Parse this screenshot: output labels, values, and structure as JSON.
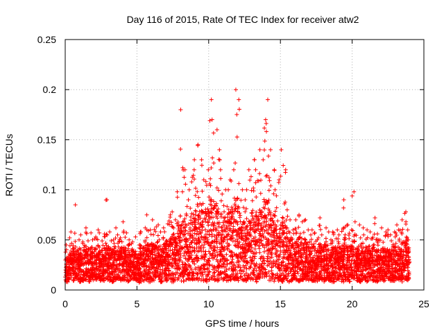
{
  "chart_data": {
    "type": "scatter",
    "title": "Day 116 of 2015, Rate Of TEC Index for receiver atw2",
    "xlabel": "GPS time / hours",
    "ylabel": "ROTI / TECUs",
    "xlim": [
      0,
      25
    ],
    "ylim": [
      0,
      0.25
    ],
    "xticks": [
      "0",
      "5",
      "10",
      "15",
      "20",
      "25"
    ],
    "yticks": [
      "0",
      "0.05",
      "0.1",
      "0.15",
      "0.2",
      "0.25"
    ],
    "grid": true,
    "legend": "none",
    "marker": "plus",
    "color": "#ff0000",
    "series": [
      {
        "x": [
          0.0,
          0.2,
          0.4,
          0.6,
          0.8,
          1.0,
          1.2,
          1.4,
          1.6,
          1.8,
          2.0,
          2.2,
          2.4,
          2.6,
          2.8,
          3.0,
          3.2,
          3.4,
          3.6,
          3.8,
          4.0,
          4.2,
          4.4,
          4.6,
          4.8,
          5.0,
          5.2,
          5.4,
          5.6,
          5.8,
          6.0,
          6.2,
          6.4,
          6.6,
          6.8,
          7.0,
          7.2,
          7.4,
          7.6,
          7.8,
          8.0,
          8.2,
          8.4,
          8.6,
          8.8,
          9.0,
          9.2,
          9.4,
          9.6,
          9.8,
          10.0,
          10.2,
          10.4,
          10.6,
          10.8,
          11.0,
          11.2,
          11.4,
          11.6,
          11.8,
          12.0,
          12.2,
          12.4,
          12.6,
          12.8,
          13.0,
          13.2,
          13.4,
          13.6,
          13.8,
          14.0,
          14.2,
          14.4,
          14.6,
          14.8,
          15.0,
          15.2,
          15.4,
          15.6,
          15.8,
          16.0,
          16.2,
          16.4,
          16.6,
          16.8,
          17.0,
          17.2,
          17.4,
          17.6,
          17.8,
          18.0,
          18.2,
          18.4,
          18.6,
          18.8,
          19.0,
          19.2,
          19.4,
          19.6,
          19.8,
          20.0,
          20.2,
          20.4,
          20.6,
          20.8,
          21.0,
          21.2,
          21.4,
          21.6,
          21.8,
          22.0,
          22.2,
          22.4,
          22.6,
          22.8,
          23.0,
          23.2,
          23.4,
          23.6,
          23.8
        ],
        "y_min": [
          0.008,
          0.01,
          0.009,
          0.011,
          0.01,
          0.008,
          0.009,
          0.01,
          0.008,
          0.009,
          0.01,
          0.011,
          0.009,
          0.008,
          0.01,
          0.009,
          0.008,
          0.01,
          0.011,
          0.009,
          0.01,
          0.008,
          0.009,
          0.01,
          0.009,
          0.007,
          0.008,
          0.009,
          0.01,
          0.008,
          0.009,
          0.01,
          0.009,
          0.008,
          0.01,
          0.009,
          0.01,
          0.008,
          0.009,
          0.01,
          0.009,
          0.008,
          0.01,
          0.009,
          0.008,
          0.01,
          0.009,
          0.008,
          0.006,
          0.008,
          0.009,
          0.01,
          0.008,
          0.009,
          0.008,
          0.01,
          0.009,
          0.008,
          0.01,
          0.009,
          0.008,
          0.01,
          0.009,
          0.008,
          0.01,
          0.009,
          0.008,
          0.01,
          0.009,
          0.008,
          0.01,
          0.009,
          0.008,
          0.01,
          0.009,
          0.008,
          0.01,
          0.009,
          0.008,
          0.01,
          0.009,
          0.008,
          0.01,
          0.009,
          0.008,
          0.01,
          0.009,
          0.008,
          0.01,
          0.009,
          0.008,
          0.01,
          0.009,
          0.008,
          0.01,
          0.009,
          0.008,
          0.01,
          0.009,
          0.008,
          0.01,
          0.009,
          0.008,
          0.01,
          0.009,
          0.008,
          0.01,
          0.009,
          0.008,
          0.01,
          0.009,
          0.008,
          0.01,
          0.009,
          0.008,
          0.01,
          0.009,
          0.008,
          0.01,
          0.009
        ],
        "y_max": [
          0.045,
          0.052,
          0.058,
          0.085,
          0.05,
          0.055,
          0.048,
          0.062,
          0.057,
          0.05,
          0.053,
          0.06,
          0.049,
          0.056,
          0.09,
          0.058,
          0.05,
          0.062,
          0.055,
          0.052,
          0.068,
          0.057,
          0.05,
          0.048,
          0.053,
          0.045,
          0.058,
          0.062,
          0.075,
          0.06,
          0.07,
          0.063,
          0.065,
          0.058,
          0.062,
          0.066,
          0.075,
          0.078,
          0.07,
          0.098,
          0.18,
          0.12,
          0.09,
          0.1,
          0.12,
          0.13,
          0.145,
          0.13,
          0.11,
          0.12,
          0.19,
          0.17,
          0.16,
          0.14,
          0.12,
          0.1,
          0.1,
          0.11,
          0.12,
          0.2,
          0.19,
          0.1,
          0.09,
          0.1,
          0.12,
          0.13,
          0.12,
          0.14,
          0.13,
          0.17,
          0.19,
          0.14,
          0.12,
          0.1,
          0.11,
          0.14,
          0.12,
          0.08,
          0.07,
          0.06,
          0.07,
          0.075,
          0.068,
          0.07,
          0.06,
          0.055,
          0.06,
          0.05,
          0.072,
          0.055,
          0.062,
          0.058,
          0.05,
          0.058,
          0.06,
          0.055,
          0.062,
          0.09,
          0.065,
          0.06,
          0.098,
          0.068,
          0.065,
          0.062,
          0.055,
          0.06,
          0.058,
          0.072,
          0.056,
          0.05,
          0.062,
          0.058,
          0.06,
          0.055,
          0.058,
          0.065,
          0.06,
          0.07,
          0.078,
          0.06
        ],
        "y_typical": [
          0.02,
          0.022,
          0.025,
          0.026,
          0.024,
          0.022,
          0.025,
          0.026,
          0.024,
          0.023,
          0.025,
          0.027,
          0.024,
          0.022,
          0.026,
          0.025,
          0.023,
          0.026,
          0.027,
          0.025,
          0.026,
          0.024,
          0.023,
          0.025,
          0.022,
          0.02,
          0.024,
          0.026,
          0.028,
          0.026,
          0.028,
          0.027,
          0.028,
          0.026,
          0.027,
          0.028,
          0.03,
          0.032,
          0.031,
          0.035,
          0.04,
          0.038,
          0.036,
          0.04,
          0.042,
          0.044,
          0.046,
          0.045,
          0.042,
          0.044,
          0.05,
          0.048,
          0.046,
          0.044,
          0.042,
          0.04,
          0.041,
          0.043,
          0.045,
          0.048,
          0.046,
          0.04,
          0.038,
          0.04,
          0.042,
          0.043,
          0.042,
          0.044,
          0.043,
          0.046,
          0.048,
          0.044,
          0.04,
          0.037,
          0.038,
          0.04,
          0.038,
          0.032,
          0.03,
          0.028,
          0.028,
          0.03,
          0.028,
          0.029,
          0.027,
          0.025,
          0.026,
          0.024,
          0.027,
          0.025,
          0.026,
          0.025,
          0.024,
          0.025,
          0.026,
          0.025,
          0.026,
          0.03,
          0.027,
          0.026,
          0.029,
          0.027,
          0.026,
          0.026,
          0.024,
          0.025,
          0.025,
          0.027,
          0.024,
          0.023,
          0.025,
          0.024,
          0.025,
          0.024,
          0.025,
          0.026,
          0.025,
          0.027,
          0.028,
          0.025
        ]
      }
    ]
  }
}
